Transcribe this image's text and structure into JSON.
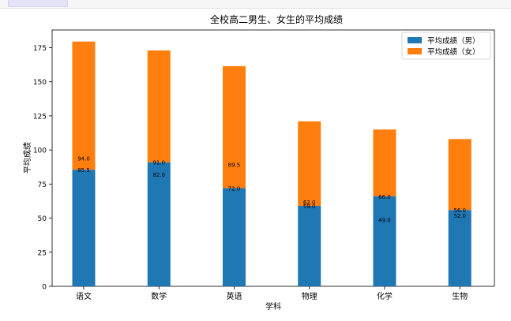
{
  "chart_data": {
    "type": "bar",
    "stacked": true,
    "title": "全校高二男生、女生的平均成绩",
    "xlabel": "学科",
    "ylabel": "平均成绩",
    "categories": [
      "语文",
      "数学",
      "英语",
      "物理",
      "化学",
      "生物"
    ],
    "series": [
      {
        "name": "平均成绩（男）",
        "color": "#1f77b4",
        "values": [
          85.5,
          91.0,
          72.0,
          59.0,
          66.0,
          56.0
        ]
      },
      {
        "name": "平均成绩（女）",
        "color": "#ff7f0e",
        "values": [
          94.0,
          82.0,
          89.5,
          62.0,
          49.0,
          52.0
        ]
      }
    ],
    "ylim": [
      0,
      188
    ],
    "yticks": [
      0,
      25,
      50,
      75,
      100,
      125,
      150,
      175
    ],
    "legend": "top-right",
    "grid": false
  }
}
